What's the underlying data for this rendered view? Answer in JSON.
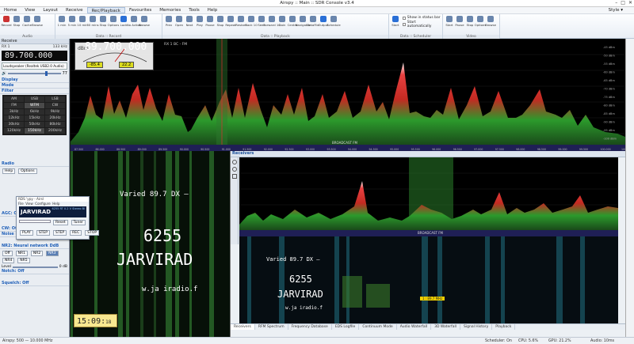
{
  "window": {
    "title": "Airspy :: Main :: SDR Console v3.4",
    "controls": [
      "–",
      "□",
      "✕"
    ]
  },
  "menu": {
    "items": [
      "Home",
      "View",
      "Layout",
      "Receive",
      "Rec/Playback",
      "Favourites",
      "Memories",
      "Tools",
      "Help"
    ],
    "active": "Rec/Playback",
    "style": "Style"
  },
  "ribbon": {
    "groups": [
      {
        "label": "Audio",
        "buttons": [
          "Record",
          "Stop",
          "Cache",
          "Browse"
        ]
      },
      {
        "label": "Data :: Record",
        "buttons": [
          "1 min",
          "5 min",
          "10 min",
          "30 mins",
          "Stop",
          "Options",
          "Lock",
          "No Action",
          "Browse"
        ]
      },
      {
        "label": "Data :: Playback",
        "buttons": [
          "Prev",
          "Open",
          "Next",
          "Play",
          "Pause",
          "Stop",
          "Repeat",
          "Restart",
          "Back 10",
          "Seek",
          "Forward 10",
          "Gain",
          "Centre",
          "Navigator",
          "DataFile",
          "Output",
          "Schedule"
        ]
      },
      {
        "label": "Data :: Scheduler",
        "buttons": [
          "Start"
        ],
        "checks": [
          "Show in status bar",
          "Start automatically"
        ]
      },
      {
        "label": "Video",
        "buttons": [
          "Start",
          "Pause",
          "Stop",
          "Options",
          "Browse"
        ]
      }
    ]
  },
  "left": {
    "panel_title": "Receive",
    "rx_label": "RX 1",
    "rx_rate": "133 kHz",
    "frequency": "89.700.000",
    "audio_device": "Loudspeaker (Realtek USB2.0 Audio)",
    "volume": "77",
    "sections": [
      "Display",
      "Mode",
      "Filter",
      "Radio",
      "AGC: Off",
      "CW: Off",
      "Noise Blanker: Off",
      "NR2: Neural network DdB",
      "Notch: Off",
      "Squelch: Off"
    ],
    "filters": [
      "AM",
      "USB",
      "LSB",
      "FM",
      "WFM",
      "CW",
      "3kHz",
      "6kHz",
      "9kHz",
      "12kHz",
      "15kHz",
      "20kHz",
      "30kHz",
      "50kHz",
      "80kHz",
      "120kHz",
      "150kHz",
      "200kHz"
    ],
    "radio_buttons": [
      "Help",
      "Options"
    ],
    "level": "0 dB",
    "nr_options": [
      "Off",
      "NR1",
      "NR2",
      "NR3",
      "NR4",
      "NR5"
    ]
  },
  "spectrum": {
    "freq": "89.700.000",
    "rx": "RX 1",
    "mode": "BC - FM",
    "level_a": "-85.4",
    "level_b": "22.2",
    "band": "BROADCAST FM",
    "unit": "dBm",
    "db_ticks": [
      "-45 dBm",
      "-50 dBm",
      "-55 dBm",
      "-60 dBm",
      "-65 dBm",
      "-70 dBm",
      "-75 dBm",
      "-80 dBm",
      "-85 dBm",
      "-90 dBm",
      "-95 dBm",
      "-100 dBm"
    ],
    "freq_ticks": [
      "87.500",
      "88.000",
      "88.500",
      "89.000",
      "89.500",
      "90.000",
      "90.500",
      "91.000",
      "91.500",
      "92.000",
      "92.500",
      "93.000",
      "93.500",
      "94.000",
      "94.500",
      "95.000",
      "95.500",
      "96.000",
      "96.500",
      "97.000",
      "97.500",
      "98.000",
      "98.500",
      "99.000",
      "99.500",
      "100.000",
      "100.500"
    ]
  },
  "rds": {
    "line1": "Varied  89.7  DX  —",
    "ps": "6255",
    "name": "JARVIRAD",
    "url": "w.ja iradio.f"
  },
  "clock": {
    "hhmm": "15:09",
    "ss": "18"
  },
  "minimod": {
    "title": "RDS 'ypy - Airsl",
    "menu": [
      "File",
      "View",
      "Configure",
      "Help"
    ],
    "display": "JARVIRAD",
    "info": "6255  RT  0.2 V  Stereo  Bl",
    "reset": "Reset",
    "tuner": "Tuner",
    "buttons": [
      "PLAY",
      "STEP",
      "STEP",
      "REC",
      "STOP"
    ]
  },
  "receivers": {
    "title": "Receivers",
    "band": "BROADCAST FM",
    "marker": "1 : 89.7 MHz",
    "rds_line1": "Varied  89.7  DX  —",
    "rds_ps": "6255",
    "rds_name": "JARVIRAD",
    "rds_url": "w.ja  iradio.f",
    "tabs": [
      "Receivers",
      "RFM Spectrum",
      "Frequency Database",
      "EDS Logfile",
      "Continuum Mode",
      "Audio Waterfall",
      "3D Waterfall",
      "Signal History",
      "Playback"
    ]
  },
  "status": {
    "left": "Airspy: 500 — 10.000 MHz",
    "sched": "Scheduler: On",
    "cpu": "CPU: 5.6%",
    "gpu": "GPU: 21.2%",
    "audio": "Audio: 10ms"
  },
  "colors": {
    "accent": "#1f5fb8",
    "spectrum_red": "#e02a22",
    "spectrum_green": "#2e8b2e",
    "baseline": "#3a3aff"
  }
}
